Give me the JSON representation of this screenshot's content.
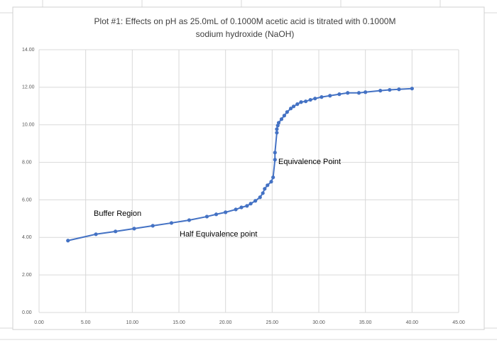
{
  "chart_data": {
    "type": "line",
    "title": [
      "Plot #1: Effects on pH as 25.0mL of 0.1000M acetic acid is titrated with 0.1000M",
      "sodium hydroxide (NaOH)"
    ],
    "annotations": [
      "Buffer Region",
      "Half Equivalence point",
      "Equivalence Point"
    ],
    "color": "#4472c4",
    "grid": true,
    "xlim": [
      0,
      45
    ],
    "xticks": [
      {
        "value": 0,
        "label": "0.00"
      },
      {
        "value": 5,
        "label": "5.00"
      },
      {
        "value": 10,
        "label": "10.00"
      },
      {
        "value": 15,
        "label": "15.00"
      },
      {
        "value": 20,
        "label": "20.00"
      },
      {
        "value": 25,
        "label": "25.00"
      },
      {
        "value": 30,
        "label": "30.00"
      },
      {
        "value": 35,
        "label": "35.00"
      },
      {
        "value": 40,
        "label": "40.00"
      },
      {
        "value": 45,
        "label": "45.00"
      }
    ],
    "ylim": [
      0,
      14
    ],
    "yticks": [
      {
        "value": 0,
        "label": "0.00"
      },
      {
        "value": 2,
        "label": "2.00"
      },
      {
        "value": 4,
        "label": "4.00"
      },
      {
        "value": 6,
        "label": "6.00"
      },
      {
        "value": 8,
        "label": "8.00"
      },
      {
        "value": 10,
        "label": "10.00"
      },
      {
        "value": 12,
        "label": "12.00"
      },
      {
        "value": 14,
        "label": "14.00"
      }
    ],
    "x": [
      3.1,
      6.1,
      8.2,
      10.2,
      12.2,
      14.2,
      16.1,
      18.0,
      19.0,
      20.0,
      21.1,
      21.7,
      22.3,
      22.7,
      23.2,
      23.7,
      24.0,
      24.2,
      24.5,
      24.9,
      25.1,
      25.3,
      25.3,
      25.5,
      25.5,
      25.6,
      25.7,
      26.0,
      26.3,
      26.6,
      27.0,
      27.3,
      27.7,
      28.1,
      28.6,
      29.1,
      29.6,
      30.3,
      31.2,
      32.2,
      33.1,
      34.3,
      35.0,
      36.6,
      37.6,
      38.6,
      40.0
    ],
    "values": [
      3.83,
      4.17,
      4.32,
      4.47,
      4.62,
      4.77,
      4.92,
      5.11,
      5.23,
      5.34,
      5.49,
      5.6,
      5.68,
      5.8,
      5.95,
      6.14,
      6.36,
      6.59,
      6.78,
      6.97,
      7.2,
      8.14,
      8.52,
      9.58,
      9.77,
      9.96,
      10.11,
      10.3,
      10.49,
      10.68,
      10.87,
      10.98,
      11.1,
      11.21,
      11.25,
      11.33,
      11.4,
      11.48,
      11.55,
      11.63,
      11.7,
      11.7,
      11.74,
      11.82,
      11.86,
      11.89,
      11.93
    ]
  }
}
